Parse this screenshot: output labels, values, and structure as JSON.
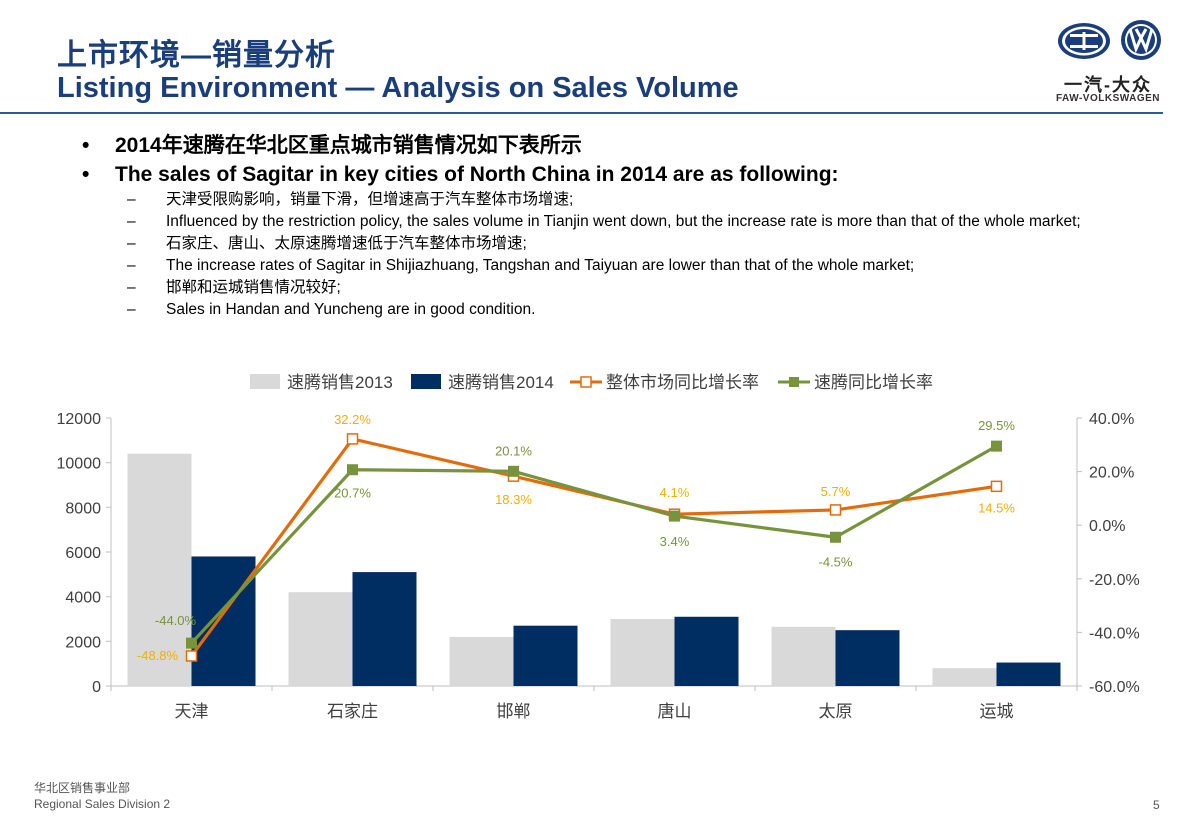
{
  "header": {
    "title_cn": "上市环境—销量分析",
    "title_en": "Listing Environment — Analysis on Sales Volume",
    "logo_cn": "一汽-大众",
    "logo_en": "FAW-VOLKSWAGEN"
  },
  "bullets": {
    "main": [
      "2014年速腾在华北区重点城市销售情况如下表所示",
      "The sales of Sagitar in key cities of North China in 2014 are as following:"
    ],
    "sub": [
      "天津受限购影响，销量下滑，但增速高于汽车整体市场增速;",
      "Influenced by the restriction policy, the sales volume in Tianjin went down, but the increase rate is more than that of the whole market;",
      "石家庄、唐山、太原速腾增速低于汽车整体市场增速;",
      "The increase rates of Sagitar in Shijiazhuang, Tangshan and Taiyuan are lower than that of the whole market;",
      "邯郸和运城销售情况较好;",
      "Sales in Handan and Yuncheng are in good condition."
    ]
  },
  "colors": {
    "title": "#1a3d7c",
    "bar2013": "#d9d9d9",
    "bar2014": "#002d62",
    "market_line": "#e36c0a",
    "sagitar_line": "#77933c",
    "market_label": "#f0b000",
    "sagitar_label": "#77933c"
  },
  "chart_data": {
    "type": "bar+line",
    "categories": [
      "天津",
      "石家庄",
      "邯郸",
      "唐山",
      "太原",
      "运城"
    ],
    "series": [
      {
        "name": "速腾销售2013",
        "kind": "bar",
        "axis": "left",
        "values": [
          10400,
          4200,
          2200,
          3000,
          2650,
          800
        ]
      },
      {
        "name": "速腾销售2014",
        "kind": "bar",
        "axis": "left",
        "values": [
          5800,
          5100,
          2700,
          3100,
          2500,
          1050
        ]
      },
      {
        "name": "整体市场同比增长率",
        "kind": "line",
        "axis": "right",
        "values": [
          -48.8,
          32.2,
          18.3,
          4.1,
          5.7,
          14.5
        ],
        "labels": [
          "-48.8%",
          "32.2%",
          "18.3%",
          "4.1%",
          "5.7%",
          "14.5%"
        ]
      },
      {
        "name": "速腾同比增长率",
        "kind": "line",
        "axis": "right",
        "values": [
          -44.0,
          20.7,
          20.1,
          3.4,
          -4.5,
          29.5
        ],
        "labels": [
          "-44.0%",
          "20.7%",
          "20.1%",
          "3.4%",
          "-4.5%",
          "29.5%"
        ]
      }
    ],
    "y_left": {
      "min": 0,
      "max": 12000,
      "ticks": [
        "0",
        "2000",
        "4000",
        "6000",
        "8000",
        "10000",
        "12000"
      ]
    },
    "y_right": {
      "min": -60,
      "max": 40,
      "ticks": [
        "-60.0%",
        "-40.0%",
        "-20.0%",
        "0.0%",
        "20.0%",
        "40.0%"
      ]
    },
    "legend_position": "top"
  },
  "footer": {
    "dept_cn": "华北区销售事业部",
    "dept_en": "Regional Sales Division 2",
    "page": "5"
  }
}
